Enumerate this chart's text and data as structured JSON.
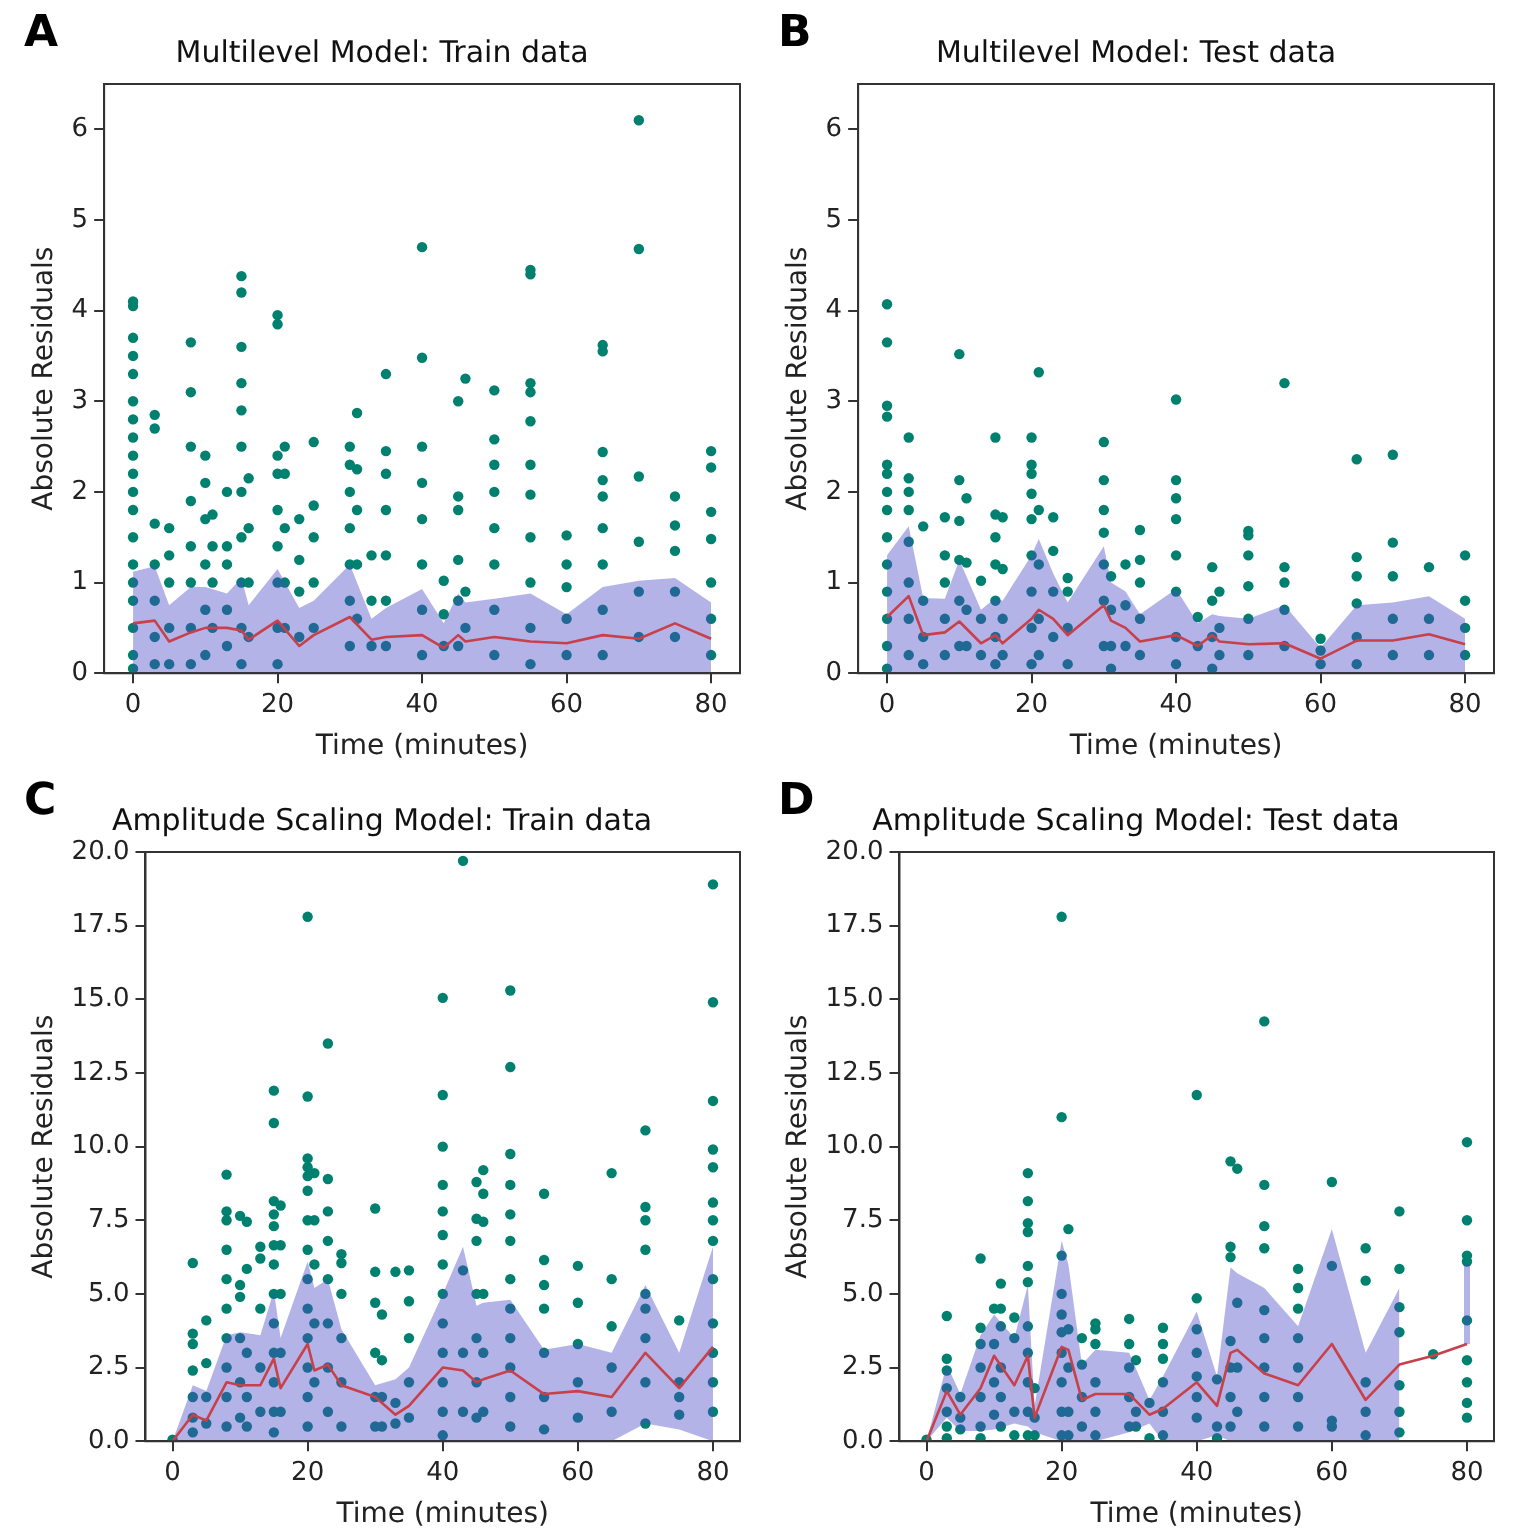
{
  "chart_data": [
    {
      "type": "scatter",
      "title": "Multilevel Model: Train data",
      "xlabel": "Time (minutes)",
      "ylabel": "Absolute Residuals",
      "annotations": [
        "A"
      ],
      "xlim": [
        -4,
        84
      ],
      "xticks": [
        0,
        20,
        40,
        60,
        80
      ],
      "ylim": [
        0,
        6.5
      ],
      "yticks": [
        0,
        1,
        2,
        3,
        4,
        5,
        6
      ],
      "series": [
        {
          "marker": "circle",
          "color": "#00806e",
          "x": [
            0,
            0,
            0,
            0,
            0,
            0,
            0,
            0,
            0,
            0,
            0,
            0,
            0,
            0,
            0,
            0,
            0,
            0,
            0,
            3,
            3,
            3,
            3,
            3,
            3,
            3,
            5,
            5,
            5,
            5,
            5,
            8,
            8,
            8,
            8,
            8,
            8,
            8,
            8,
            10,
            10,
            10,
            10,
            10,
            10,
            11,
            11,
            11,
            11,
            13,
            13,
            13,
            13,
            13,
            15,
            15,
            15,
            15,
            15,
            15,
            15,
            15,
            15,
            15,
            15,
            16,
            16,
            16,
            16,
            20,
            20,
            20,
            20,
            20,
            20,
            20,
            20,
            20,
            21,
            21,
            21,
            21,
            21,
            23,
            23,
            23,
            23,
            25,
            25,
            25,
            25,
            25,
            30,
            30,
            30,
            30,
            30,
            30,
            30,
            31,
            31,
            31,
            31,
            31,
            33,
            33,
            33,
            35,
            35,
            35,
            35,
            35,
            35,
            35,
            40,
            40,
            40,
            40,
            40,
            40,
            40,
            40,
            43,
            43,
            43,
            45,
            45,
            45,
            45,
            45,
            45,
            46,
            46,
            46,
            50,
            50,
            50,
            50,
            50,
            50,
            50,
            50,
            55,
            55,
            55,
            55,
            55,
            55,
            55,
            55,
            55,
            55,
            55,
            60,
            60,
            60,
            60,
            60,
            65,
            65,
            65,
            65,
            65,
            65,
            65,
            65,
            65,
            70,
            70,
            70,
            70,
            70,
            70,
            75,
            75,
            75,
            75,
            75,
            80,
            80,
            80,
            80,
            80,
            80,
            80
          ],
          "values": [
            4.1,
            4.05,
            3.7,
            3.5,
            3.3,
            3.0,
            2.8,
            2.6,
            2.4,
            2.2,
            2.0,
            1.8,
            1.5,
            1.2,
            1.0,
            0.8,
            0.5,
            0.2,
            0.05,
            2.85,
            2.7,
            1.65,
            1.2,
            0.8,
            0.4,
            0.1,
            1.6,
            1.3,
            1.0,
            0.5,
            0.1,
            3.65,
            3.1,
            2.5,
            1.9,
            1.4,
            1.0,
            0.5,
            0.1,
            2.4,
            2.1,
            1.7,
            1.2,
            0.7,
            0.2,
            1.75,
            1.4,
            1.0,
            0.5,
            2.0,
            1.4,
            1.2,
            0.7,
            0.3,
            4.38,
            4.2,
            3.6,
            3.2,
            2.9,
            2.5,
            2.0,
            1.5,
            1.0,
            0.5,
            0.1,
            2.15,
            1.6,
            1.0,
            0.4,
            3.95,
            3.85,
            2.4,
            2.2,
            1.8,
            1.4,
            1.0,
            0.5,
            0.1,
            2.5,
            2.2,
            1.6,
            1.0,
            0.5,
            1.7,
            1.25,
            0.9,
            0.4,
            2.55,
            1.85,
            1.5,
            1.0,
            0.5,
            2.5,
            2.3,
            2.0,
            1.6,
            1.2,
            0.8,
            0.3,
            2.87,
            2.25,
            1.8,
            1.2,
            0.6,
            1.3,
            0.8,
            0.3,
            3.3,
            2.45,
            2.2,
            1.8,
            1.3,
            0.8,
            0.3,
            4.7,
            3.48,
            2.5,
            2.1,
            1.7,
            1.2,
            0.7,
            0.2,
            1.02,
            0.65,
            0.3,
            3.0,
            1.95,
            1.8,
            1.25,
            0.8,
            0.3,
            3.25,
            0.9,
            0.5,
            3.12,
            2.58,
            2.3,
            2.0,
            1.6,
            1.2,
            0.7,
            0.2,
            4.45,
            4.4,
            3.2,
            3.1,
            2.78,
            2.3,
            1.97,
            1.5,
            1.0,
            0.5,
            0.1,
            1.52,
            1.2,
            0.95,
            0.6,
            0.2,
            3.62,
            3.55,
            2.44,
            2.13,
            1.95,
            1.6,
            1.2,
            0.7,
            0.2,
            6.1,
            4.68,
            2.17,
            1.45,
            0.9,
            0.4,
            1.95,
            1.63,
            1.35,
            0.9,
            0.4,
            2.45,
            2.27,
            1.78,
            1.48,
            1.0,
            0.6,
            0.2
          ]
        },
        {
          "type": "line",
          "marker": "none",
          "color": "#c8404a",
          "x": [
            0,
            3,
            5,
            8,
            10,
            13,
            15,
            16,
            20,
            23,
            25,
            30,
            33,
            35,
            40,
            43,
            45,
            46,
            50,
            55,
            60,
            65,
            70,
            75,
            80
          ],
          "values": [
            0.55,
            0.58,
            0.35,
            0.45,
            0.5,
            0.5,
            0.47,
            0.37,
            0.58,
            0.3,
            0.42,
            0.62,
            0.37,
            0.4,
            0.42,
            0.28,
            0.42,
            0.35,
            0.4,
            0.35,
            0.33,
            0.42,
            0.38,
            0.55,
            0.38
          ],
          "lower": [
            0,
            0,
            0,
            0,
            0,
            0,
            0,
            0,
            0,
            0,
            0,
            0,
            0,
            0,
            0,
            0,
            0,
            0,
            0,
            0,
            0,
            0,
            0,
            0,
            0
          ],
          "upper": [
            1.12,
            1.18,
            0.75,
            0.95,
            0.95,
            0.88,
            1.05,
            0.75,
            1.15,
            0.72,
            0.8,
            1.2,
            0.6,
            0.72,
            0.93,
            0.55,
            0.88,
            0.78,
            0.82,
            0.88,
            0.65,
            0.95,
            1.02,
            1.05,
            0.78
          ]
        }
      ]
    },
    {
      "type": "scatter",
      "title": "Multilevel Model: Test data",
      "xlabel": "Time (minutes)",
      "ylabel": "Absolute Residuals",
      "annotations": [
        "B"
      ],
      "xlim": [
        -4,
        84
      ],
      "xticks": [
        0,
        20,
        40,
        60,
        80
      ],
      "ylim": [
        0,
        6.5
      ],
      "yticks": [
        0,
        1,
        2,
        3,
        4,
        5,
        6
      ],
      "series": [
        {
          "marker": "circle",
          "color": "#00806e",
          "x": [
            0,
            0,
            0,
            0,
            0,
            0,
            0,
            0,
            0,
            0,
            0,
            0,
            0,
            0,
            3,
            3,
            3,
            3,
            3,
            3,
            3,
            3,
            5,
            5,
            5,
            5,
            8,
            8,
            8,
            8,
            8,
            10,
            10,
            10,
            10,
            10,
            10,
            11,
            11,
            11,
            11,
            13,
            13,
            13,
            15,
            15,
            15,
            15,
            15,
            15,
            15,
            16,
            16,
            16,
            16,
            20,
            20,
            20,
            20,
            20,
            20,
            20,
            20,
            20,
            21,
            21,
            21,
            21,
            21,
            23,
            23,
            23,
            23,
            25,
            25,
            25,
            25,
            30,
            30,
            30,
            30,
            30,
            30,
            30,
            31,
            31,
            31,
            31,
            33,
            33,
            33,
            35,
            35,
            35,
            35,
            35,
            40,
            40,
            40,
            40,
            40,
            40,
            40,
            40,
            43,
            43,
            45,
            45,
            45,
            45,
            46,
            46,
            46,
            50,
            50,
            50,
            50,
            50,
            50,
            55,
            55,
            55,
            55,
            55,
            60,
            60,
            60,
            65,
            65,
            65,
            65,
            65,
            65,
            70,
            70,
            70,
            70,
            70,
            75,
            75,
            75,
            80,
            80,
            80,
            80
          ],
          "values": [
            4.07,
            3.65,
            2.95,
            2.83,
            2.3,
            2.2,
            2.0,
            1.8,
            1.5,
            1.2,
            0.9,
            0.6,
            0.3,
            0.05,
            2.6,
            2.15,
            2.0,
            1.8,
            1.45,
            1.0,
            0.6,
            0.2,
            1.62,
            0.8,
            0.4,
            0.1,
            1.72,
            1.3,
            1.0,
            0.6,
            0.2,
            3.52,
            2.13,
            1.68,
            1.25,
            0.8,
            0.3,
            1.93,
            1.22,
            0.7,
            0.3,
            1.02,
            0.6,
            0.2,
            2.6,
            1.75,
            1.5,
            1.2,
            0.8,
            0.4,
            0.1,
            1.72,
            1.15,
            0.6,
            0.2,
            2.6,
            2.3,
            2.2,
            1.98,
            1.7,
            1.3,
            0.9,
            0.5,
            0.1,
            3.32,
            1.8,
            1.2,
            0.6,
            0.2,
            1.72,
            1.35,
            0.9,
            0.4,
            1.05,
            0.9,
            0.5,
            0.1,
            2.55,
            2.13,
            1.8,
            1.55,
            1.2,
            0.8,
            0.3,
            1.07,
            0.7,
            0.3,
            0.05,
            1.2,
            0.75,
            0.3,
            1.58,
            1.25,
            1.0,
            0.6,
            0.2,
            3.02,
            2.13,
            1.93,
            1.7,
            1.3,
            0.9,
            0.4,
            0.1,
            0.62,
            0.3,
            1.17,
            0.8,
            0.4,
            0.05,
            0.9,
            0.5,
            0.2,
            1.57,
            1.52,
            1.3,
            0.96,
            0.6,
            0.2,
            3.2,
            1.17,
            1.0,
            0.7,
            0.3,
            0.38,
            0.25,
            0.1,
            2.36,
            1.28,
            1.07,
            0.77,
            0.4,
            0.1,
            2.41,
            1.44,
            1.07,
            0.6,
            0.2,
            1.17,
            0.6,
            0.2,
            1.3,
            0.8,
            0.5,
            0.2
          ]
        },
        {
          "type": "line",
          "marker": "none",
          "color": "#c8404a",
          "x": [
            0,
            3,
            5,
            8,
            10,
            13,
            15,
            16,
            20,
            21,
            23,
            25,
            30,
            31,
            33,
            35,
            40,
            43,
            45,
            46,
            50,
            55,
            60,
            65,
            70,
            75,
            80
          ],
          "values": [
            0.62,
            0.85,
            0.42,
            0.45,
            0.57,
            0.33,
            0.42,
            0.33,
            0.6,
            0.7,
            0.6,
            0.42,
            0.75,
            0.58,
            0.5,
            0.35,
            0.42,
            0.3,
            0.42,
            0.35,
            0.32,
            0.33,
            0.16,
            0.36,
            0.36,
            0.43,
            0.32
          ],
          "lower": [
            0,
            0,
            0,
            0,
            0,
            0,
            0,
            0,
            0,
            0,
            0,
            0,
            0,
            0,
            0,
            0,
            0,
            0,
            0,
            0,
            0,
            0,
            0,
            0,
            0,
            0,
            0
          ],
          "upper": [
            1.3,
            1.62,
            0.83,
            0.82,
            1.25,
            0.7,
            0.83,
            0.8,
            1.3,
            1.48,
            1.1,
            0.78,
            1.4,
            1.0,
            0.9,
            0.65,
            0.93,
            0.55,
            0.65,
            0.63,
            0.6,
            0.75,
            0.28,
            0.75,
            0.78,
            0.85,
            0.6
          ]
        }
      ]
    },
    {
      "type": "scatter",
      "title": "Amplitude Scaling Model: Train data",
      "xlabel": "Time (minutes)",
      "ylabel": "Absolute Residuals",
      "annotations": [
        "C"
      ],
      "xlim": [
        -4,
        84
      ],
      "xticks": [
        0,
        20,
        40,
        60,
        80
      ],
      "ylim": [
        0,
        20
      ],
      "yticks": [
        {
          "value": 0,
          "label": "0.0"
        },
        {
          "value": 2.5,
          "label": "2.5"
        },
        {
          "value": 5,
          "label": "5.0"
        },
        {
          "value": 7.5,
          "label": "7.5"
        },
        {
          "value": 10,
          "label": "10.0"
        },
        {
          "value": 12.5,
          "label": "12.5"
        },
        {
          "value": 15,
          "label": "15.0"
        },
        {
          "value": 17.5,
          "label": "17.5"
        },
        {
          "value": 20,
          "label": "20.0"
        }
      ],
      "series": [
        {
          "marker": "circle",
          "color": "#00806e",
          "x": [
            0,
            3,
            3,
            3,
            3,
            3,
            3,
            3,
            5,
            5,
            5,
            5,
            8,
            8,
            8,
            8,
            8,
            8,
            8,
            8,
            8,
            8,
            10,
            10,
            10,
            10,
            10,
            10,
            11,
            11,
            11,
            11,
            11,
            13,
            13,
            13,
            13,
            13,
            15,
            15,
            15,
            15,
            15,
            15,
            15,
            15,
            15,
            15,
            15,
            15,
            15,
            16,
            16,
            16,
            16,
            16,
            20,
            20,
            20,
            20,
            20,
            20,
            20,
            20,
            20,
            20,
            20,
            20,
            20,
            20,
            21,
            21,
            21,
            21,
            21,
            23,
            23,
            23,
            23,
            23,
            23,
            23,
            23,
            25,
            25,
            25,
            25,
            25,
            25,
            30,
            30,
            30,
            30,
            30,
            30,
            31,
            31,
            31,
            31,
            33,
            33,
            33,
            35,
            35,
            35,
            35,
            35,
            40,
            40,
            40,
            40,
            40,
            40,
            40,
            40,
            40,
            40,
            40,
            40,
            40,
            43,
            43,
            43,
            43,
            45,
            45,
            45,
            45,
            45,
            45,
            45,
            46,
            46,
            46,
            46,
            46,
            46,
            50,
            50,
            50,
            50,
            50,
            50,
            50,
            50,
            50,
            50,
            50,
            50,
            55,
            55,
            55,
            55,
            55,
            55,
            55,
            60,
            60,
            60,
            60,
            60,
            65,
            65,
            65,
            65,
            65,
            70,
            70,
            70,
            70,
            70,
            70,
            70,
            70,
            70,
            75,
            75,
            75,
            75,
            80,
            80,
            80,
            80,
            80,
            80,
            80,
            80,
            80,
            80,
            80,
            80,
            80
          ],
          "values": [
            0.05,
            6.05,
            3.65,
            3.3,
            2.4,
            1.5,
            0.8,
            0.3,
            4.1,
            2.65,
            1.5,
            0.6,
            9.05,
            7.8,
            7.5,
            6.5,
            5.5,
            4.5,
            3.5,
            2.5,
            1.5,
            0.5,
            7.65,
            5.3,
            4.9,
            3.5,
            2.0,
            0.8,
            7.45,
            5.85,
            3.0,
            1.5,
            0.5,
            6.6,
            6.2,
            4.5,
            2.5,
            1.0,
            11.9,
            10.8,
            8.15,
            7.7,
            7.3,
            6.65,
            6.0,
            5.0,
            4.0,
            3.0,
            2.0,
            1.0,
            0.3,
            8.0,
            6.65,
            5.0,
            3.0,
            1.0,
            17.8,
            11.7,
            9.6,
            9.3,
            9.0,
            8.5,
            7.5,
            6.5,
            5.5,
            4.5,
            3.5,
            2.5,
            1.5,
            0.5,
            9.1,
            7.5,
            6.0,
            4.0,
            2.0,
            13.5,
            8.9,
            7.8,
            6.8,
            5.5,
            4.0,
            2.5,
            1.0,
            6.35,
            6.05,
            5.0,
            3.5,
            2.0,
            0.5,
            7.9,
            5.75,
            4.7,
            3.0,
            1.5,
            0.5,
            4.3,
            2.75,
            1.5,
            0.5,
            5.75,
            1.3,
            0.6,
            5.8,
            4.75,
            3.5,
            2.0,
            0.8,
            15.05,
            11.75,
            10.0,
            8.7,
            7.8,
            7.0,
            6.0,
            5.0,
            4.0,
            3.0,
            2.0,
            1.0,
            0.2,
            19.7,
            5.8,
            3.0,
            1.0,
            8.8,
            7.55,
            6.8,
            5.0,
            3.5,
            2.0,
            0.8,
            9.2,
            8.4,
            7.45,
            5.0,
            3.0,
            1.0,
            15.3,
            12.7,
            9.75,
            8.7,
            7.7,
            6.8,
            5.5,
            4.5,
            3.5,
            2.5,
            1.5,
            0.5,
            8.4,
            6.15,
            5.3,
            4.5,
            3.0,
            1.5,
            0.4,
            5.95,
            4.7,
            3.3,
            2.0,
            0.8,
            9.1,
            5.5,
            3.9,
            2.5,
            1.0,
            10.55,
            7.95,
            7.5,
            6.5,
            5.0,
            4.5,
            3.5,
            2.0,
            0.6,
            4.1,
            2.0,
            1.5,
            0.9,
            18.9,
            14.9,
            11.55,
            9.9,
            9.3,
            8.1,
            7.5,
            6.8,
            5.5,
            4.0,
            3.0,
            2.0,
            1.0
          ]
        },
        {
          "type": "line",
          "marker": "none",
          "color": "#c8404a",
          "x": [
            0,
            3,
            5,
            8,
            10,
            13,
            15,
            16,
            20,
            21,
            23,
            25,
            30,
            33,
            35,
            40,
            43,
            45,
            46,
            50,
            55,
            60,
            65,
            70,
            75,
            80
          ],
          "values": [
            0,
            0.9,
            0.7,
            2.0,
            1.9,
            1.9,
            2.8,
            1.8,
            3.3,
            2.4,
            2.6,
            1.9,
            1.5,
            0.9,
            1.2,
            2.5,
            2.4,
            2.0,
            2.1,
            2.4,
            1.6,
            1.7,
            1.5,
            3.0,
            1.8,
            3.2
          ],
          "lower": [
            0,
            0,
            0,
            0,
            0,
            0,
            0,
            0,
            0,
            0,
            0,
            0,
            0,
            0,
            0,
            0,
            0,
            0,
            0,
            0,
            0,
            0,
            0,
            0.6,
            0.4,
            0
          ],
          "upper": [
            0,
            1.9,
            1.7,
            3.6,
            3.7,
            3.6,
            5.1,
            3.5,
            6.1,
            5.2,
            5.5,
            3.8,
            1.9,
            2.1,
            2.5,
            5.0,
            6.6,
            4.6,
            4.7,
            4.8,
            3.1,
            3.3,
            3.0,
            5.3,
            3.0,
            6.6
          ]
        }
      ]
    },
    {
      "type": "scatter",
      "title": "Amplitude Scaling Model: Test data",
      "xlabel": "Time (minutes)",
      "ylabel": "Absolute Residuals",
      "annotations": [
        "D"
      ],
      "xlim": [
        -4,
        84
      ],
      "xticks": [
        0,
        20,
        40,
        60,
        80
      ],
      "ylim": [
        0,
        20
      ],
      "yticks": [
        {
          "value": 0,
          "label": "0.0"
        },
        {
          "value": 2.5,
          "label": "2.5"
        },
        {
          "value": 5,
          "label": "5.0"
        },
        {
          "value": 7.5,
          "label": "7.5"
        },
        {
          "value": 10,
          "label": "10.0"
        },
        {
          "value": 12.5,
          "label": "12.5"
        },
        {
          "value": 15,
          "label": "15.0"
        },
        {
          "value": 17.5,
          "label": "17.5"
        },
        {
          "value": 20,
          "label": "20.0"
        }
      ],
      "series": [
        {
          "marker": "circle",
          "color": "#00806e",
          "x": [
            0,
            3,
            3,
            3,
            3,
            3,
            3,
            3,
            5,
            5,
            5,
            8,
            8,
            8,
            8,
            8,
            8,
            8,
            10,
            10,
            10,
            10,
            11,
            11,
            11,
            11,
            11,
            11,
            13,
            13,
            13,
            13,
            15,
            15,
            15,
            15,
            15,
            15,
            15,
            15,
            15,
            15,
            15,
            16,
            16,
            16,
            20,
            20,
            20,
            20,
            20,
            20,
            20,
            20,
            20,
            20,
            21,
            21,
            21,
            21,
            21,
            23,
            23,
            23,
            23,
            25,
            25,
            25,
            25,
            25,
            25,
            30,
            30,
            30,
            30,
            30,
            31,
            31,
            31,
            33,
            33,
            35,
            35,
            35,
            35,
            35,
            35,
            40,
            40,
            40,
            40,
            40,
            40,
            40,
            43,
            43,
            43,
            45,
            45,
            45,
            45,
            45,
            45,
            45,
            46,
            46,
            46,
            46,
            50,
            50,
            50,
            50,
            50,
            50,
            50,
            50,
            50,
            55,
            55,
            55,
            55,
            55,
            55,
            55,
            60,
            60,
            60,
            60,
            65,
            65,
            65,
            65,
            65,
            70,
            70,
            70,
            70,
            70,
            70,
            70,
            75,
            80,
            80,
            80,
            80,
            80,
            80,
            80,
            80,
            80
          ],
          "values": [
            0.05,
            4.25,
            2.8,
            2.4,
            1.8,
            1.0,
            0.5,
            0.1,
            1.5,
            0.8,
            0.4,
            6.2,
            3.85,
            3.3,
            2.5,
            1.5,
            0.5,
            0.1,
            4.5,
            3.3,
            2.0,
            0.9,
            5.35,
            4.5,
            3.9,
            2.5,
            1.5,
            0.5,
            4.2,
            3.5,
            1.0,
            0.2,
            9.1,
            8.15,
            7.4,
            7.1,
            5.95,
            5.4,
            3.9,
            3.0,
            2.0,
            1.0,
            0.2,
            1.8,
            0.8,
            0.2,
            17.8,
            11.0,
            6.3,
            5.0,
            4.3,
            3.7,
            3.0,
            2.0,
            1.0,
            0.2,
            7.2,
            3.8,
            2.5,
            1.0,
            0.2,
            3.5,
            2.6,
            1.5,
            0.5,
            4.0,
            3.8,
            3.3,
            2.0,
            1.0,
            0.2,
            4.15,
            3.3,
            2.5,
            1.5,
            0.5,
            2.75,
            1.0,
            0.5,
            1.3,
            0.1,
            3.85,
            3.3,
            2.8,
            2.0,
            1.0,
            0.2,
            11.75,
            4.85,
            3.8,
            3.0,
            2.2,
            1.5,
            0.8,
            2.1,
            0.5,
            0.1,
            9.5,
            6.6,
            6.25,
            3.4,
            2.5,
            1.5,
            0.5,
            9.25,
            4.7,
            2.5,
            1.0,
            14.25,
            8.7,
            7.3,
            6.55,
            4.45,
            3.5,
            2.5,
            1.5,
            0.5,
            5.85,
            5.2,
            4.5,
            3.5,
            2.5,
            1.5,
            0.5,
            8.8,
            5.95,
            0.7,
            0.5,
            6.55,
            5.45,
            2.0,
            1.0,
            0.2,
            7.8,
            5.85,
            4.55,
            3.7,
            1.9,
            1.0,
            0.3,
            2.95,
            10.15,
            7.5,
            6.3,
            6.1,
            4.1,
            2.75,
            2.0,
            1.3,
            0.8
          ]
        },
        {
          "type": "line",
          "marker": "none",
          "color": "#c8404a",
          "x": [
            0,
            3,
            5,
            8,
            10,
            13,
            15,
            16,
            20,
            21,
            23,
            25,
            30,
            33,
            35,
            40,
            43,
            45,
            46,
            50,
            55,
            60,
            65,
            70,
            75,
            80
          ],
          "values": [
            0,
            1.7,
            0.9,
            1.8,
            2.9,
            1.9,
            2.9,
            0.8,
            3.2,
            3.1,
            1.4,
            1.6,
            1.6,
            0.9,
            1.1,
            2.0,
            1.2,
            3.0,
            3.1,
            2.3,
            1.9,
            3.3,
            1.4,
            2.6,
            2.9,
            3.3
          ],
          "lower": [
            0,
            0.8,
            0.35,
            0.35,
            0.4,
            0.6,
            0.5,
            0.3,
            0,
            0,
            0,
            0,
            0.3,
            0.6,
            0,
            0,
            0.2,
            0,
            0,
            0,
            0,
            0,
            0,
            0,
            null,
            3.3
          ],
          "upper": [
            0,
            2.6,
            1.6,
            3.6,
            4.3,
            3.5,
            5.3,
            1.2,
            6.8,
            6.0,
            2.6,
            3.1,
            3.0,
            1.4,
            2.2,
            4.4,
            2.2,
            5.9,
            5.7,
            5.2,
            3.9,
            7.2,
            3.0,
            5.2,
            null,
            6.0
          ]
        }
      ]
    }
  ]
}
